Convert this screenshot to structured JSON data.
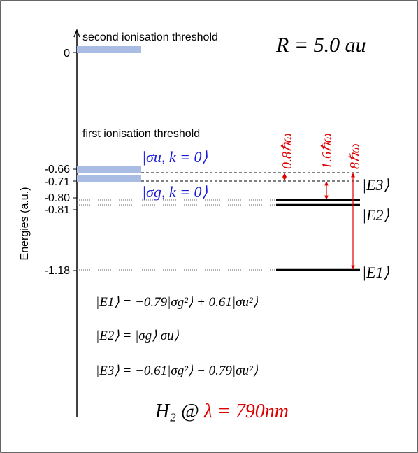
{
  "axis": {
    "label": "Energies (a.u.)",
    "ticks": [
      "0",
      "-0.66",
      "-0.71",
      "-0.80",
      "-0.81",
      "-1.18"
    ]
  },
  "labels": {
    "second_threshold": "second ionisation threshold",
    "first_threshold": "first ionisation threshold",
    "distance": "R = 5.0 au",
    "sigma_u": "|σu, k = 0⟩",
    "sigma_g": "|σg, k = 0⟩"
  },
  "kets": [
    "|E3⟩",
    "|E2⟩",
    "|E1⟩"
  ],
  "transitions": [
    "0.8ℏω",
    "1.6ℏω",
    "8ℏω"
  ],
  "equations": [
    "|E1⟩ = −0.79|σg²⟩ + 0.61|σu²⟩",
    "|E2⟩ = |σg⟩|σu⟩",
    "|E3⟩ = −0.61|σg²⟩ − 0.79|σu²⟩"
  ],
  "footer": {
    "molecule": "H₂ @ ",
    "wavelength": "λ = 790nm"
  }
}
